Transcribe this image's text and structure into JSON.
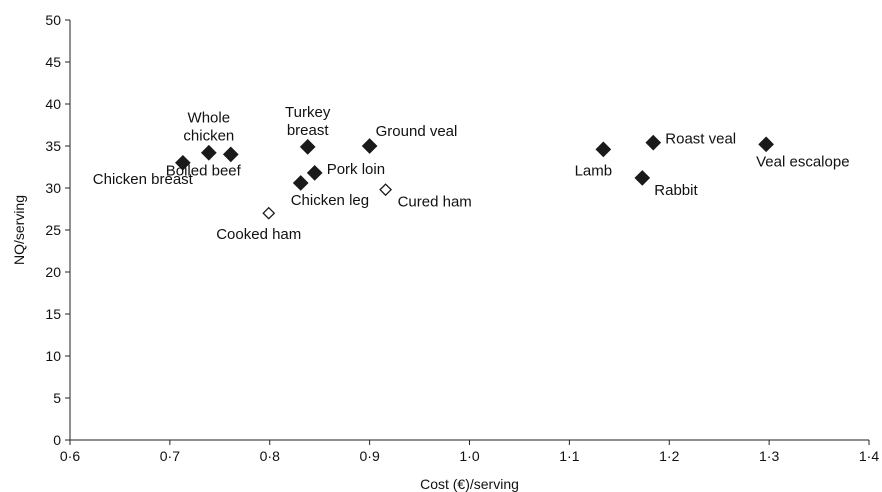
{
  "chart_data": {
    "type": "scatter",
    "title": "",
    "xlabel": "Cost (€)/serving",
    "ylabel": "NQ/serving",
    "xlim": [
      0.6,
      1.4
    ],
    "ylim": [
      0,
      50
    ],
    "grid": false,
    "legend": "none",
    "x_ticks": [
      {
        "value": 0.6,
        "label": "0·6"
      },
      {
        "value": 0.7,
        "label": "0·7"
      },
      {
        "value": 0.8,
        "label": "0·8"
      },
      {
        "value": 0.9,
        "label": "0·9"
      },
      {
        "value": 1.0,
        "label": "1·0"
      },
      {
        "value": 1.1,
        "label": "1·1"
      },
      {
        "value": 1.2,
        "label": "1·2"
      },
      {
        "value": 1.3,
        "label": "1·3"
      },
      {
        "value": 1.4,
        "label": "1·4"
      }
    ],
    "y_ticks": [
      {
        "value": 0,
        "label": "0"
      },
      {
        "value": 5,
        "label": "5"
      },
      {
        "value": 10,
        "label": "10"
      },
      {
        "value": 15,
        "label": "15"
      },
      {
        "value": 20,
        "label": "20"
      },
      {
        "value": 25,
        "label": "25"
      },
      {
        "value": 30,
        "label": "30"
      },
      {
        "value": 35,
        "label": "35"
      },
      {
        "value": 40,
        "label": "40"
      },
      {
        "value": 45,
        "label": "45"
      },
      {
        "value": 50,
        "label": "50"
      }
    ],
    "points": [
      {
        "label": "Chicken breast",
        "x": 0.713,
        "y": 33.0,
        "marker": "filled-diamond",
        "label_pos": "below-left"
      },
      {
        "label": "Whole chicken",
        "x": 0.739,
        "y": 34.2,
        "marker": "filled-diamond",
        "label_pos": "above"
      },
      {
        "label": "Boiled beef",
        "x": 0.761,
        "y": 34.0,
        "marker": "filled-diamond",
        "label_pos": "below-left"
      },
      {
        "label": "Cooked ham",
        "x": 0.799,
        "y": 27.0,
        "marker": "open-diamond",
        "label_pos": "below"
      },
      {
        "label": "Chicken leg",
        "x": 0.831,
        "y": 30.6,
        "marker": "filled-diamond",
        "label_pos": "below-right"
      },
      {
        "label": "Turkey breast",
        "x": 0.838,
        "y": 34.9,
        "marker": "filled-diamond",
        "label_pos": "above"
      },
      {
        "label": "Pork loin",
        "x": 0.845,
        "y": 31.8,
        "marker": "filled-diamond",
        "label_pos": "right"
      },
      {
        "label": "Ground veal",
        "x": 0.9,
        "y": 35.0,
        "marker": "filled-diamond",
        "label_pos": "above-right"
      },
      {
        "label": "Cured ham",
        "x": 0.916,
        "y": 29.8,
        "marker": "open-diamond",
        "label_pos": "below-right"
      },
      {
        "label": "Lamb",
        "x": 1.134,
        "y": 34.6,
        "marker": "filled-diamond",
        "label_pos": "below"
      },
      {
        "label": "Rabbit",
        "x": 1.173,
        "y": 31.2,
        "marker": "filled-diamond",
        "label_pos": "below-right"
      },
      {
        "label": "Roast veal",
        "x": 1.184,
        "y": 35.4,
        "marker": "filled-diamond",
        "label_pos": "right"
      },
      {
        "label": "Veal escalope",
        "x": 1.297,
        "y": 35.2,
        "marker": "filled-diamond",
        "label_pos": "below-right"
      }
    ]
  }
}
